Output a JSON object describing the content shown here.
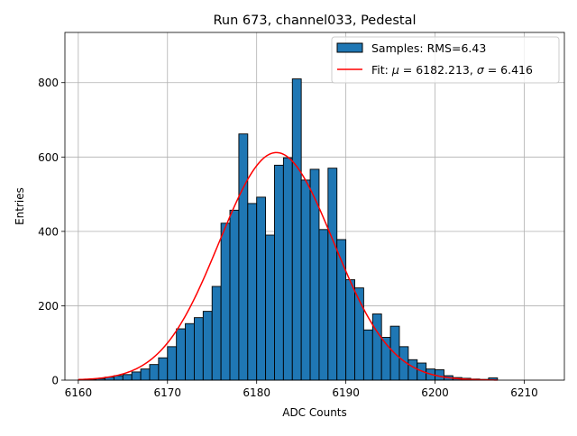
{
  "chart_data": {
    "type": "bar",
    "title": "Run 673, channel033, Pedestal",
    "xlabel": "ADC Counts",
    "ylabel": "Entries",
    "xlim": [
      6158.5,
      6214.5
    ],
    "ylim": [
      0,
      935
    ],
    "xticks": [
      6160,
      6170,
      6180,
      6190,
      6200,
      6210
    ],
    "yticks": [
      0,
      200,
      400,
      600,
      800
    ],
    "grid": true,
    "legend_position": "top-right",
    "bin_width": 1,
    "histogram": {
      "name": "Samples: RMS=6.43",
      "color": "#1f77b4",
      "edge_color": "#000000",
      "bin_starts": [
        6160,
        6161,
        6162,
        6163,
        6164,
        6165,
        6166,
        6167,
        6168,
        6169,
        6170,
        6171,
        6172,
        6173,
        6174,
        6175,
        6176,
        6177,
        6178,
        6179,
        6180,
        6181,
        6182,
        6183,
        6184,
        6185,
        6186,
        6187,
        6188,
        6189,
        6190,
        6191,
        6192,
        6193,
        6194,
        6195,
        6196,
        6197,
        6198,
        6199,
        6200,
        6201,
        6202,
        6203,
        6204,
        6205,
        6206
      ],
      "counts": [
        1,
        2,
        4,
        8,
        12,
        15,
        22,
        30,
        42,
        60,
        90,
        138,
        152,
        168,
        185,
        252,
        422,
        457,
        662,
        475,
        492,
        390,
        578,
        598,
        810,
        538,
        567,
        405,
        570,
        378,
        270,
        248,
        135,
        178,
        115,
        145,
        90,
        55,
        46,
        30,
        28,
        12,
        7,
        5,
        3,
        2,
        6
      ]
    },
    "fit": {
      "name_prefix": "Fit: ",
      "mu_symbol": "μ",
      "mu_text": " = 6182.213, ",
      "sigma_symbol": "σ",
      "sigma_text": " = 6.416",
      "mu": 6182.213,
      "sigma": 6.416,
      "amplitude": 612,
      "x_range": [
        6160,
        6207
      ],
      "color": "#ff0000"
    }
  }
}
